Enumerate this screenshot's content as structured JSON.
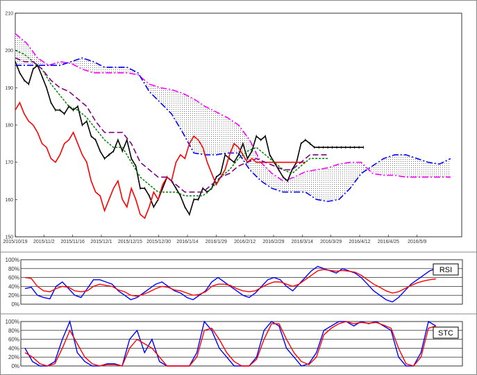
{
  "chart_data": [
    {
      "type": "line",
      "panel": "main",
      "title": "",
      "xlabel": "",
      "ylabel": "",
      "ylim": [
        150,
        210
      ],
      "y_ticks": [
        150,
        160,
        170,
        180,
        190,
        200,
        210
      ],
      "x_tick_labels": [
        "2015/10/19",
        "2015/11/2",
        "2015/11/16",
        "2015/12/1",
        "2015/12/15",
        "2015/12/30",
        "2016/1/14",
        "2016/1/29",
        "2016/2/12",
        "2016/2/29",
        "2016/3/14",
        "2016/3/29",
        "2016/4/12",
        "2016/4/25",
        "2016/5/9"
      ],
      "grid": false,
      "cloud": {
        "span_a": [
          [
            0,
            204.5
          ],
          [
            5,
            202
          ],
          [
            10,
            198
          ],
          [
            15,
            196
          ],
          [
            20,
            197
          ],
          [
            25,
            196.5
          ],
          [
            30,
            195
          ],
          [
            35,
            194
          ],
          [
            40,
            194
          ],
          [
            45,
            194
          ],
          [
            50,
            194
          ],
          [
            55,
            193.5
          ],
          [
            60,
            191
          ],
          [
            65,
            190
          ],
          [
            70,
            189.5
          ],
          [
            75,
            188.5
          ],
          [
            80,
            187
          ],
          [
            85,
            185
          ],
          [
            90,
            183.5
          ],
          [
            95,
            182
          ],
          [
            100,
            180
          ],
          [
            105,
            176
          ],
          [
            110,
            170
          ],
          [
            115,
            167
          ],
          [
            120,
            165
          ],
          [
            125,
            166
          ],
          [
            130,
            167.5
          ],
          [
            135,
            168
          ],
          [
            140,
            168.5
          ],
          [
            145,
            169.5
          ],
          [
            150,
            170
          ],
          [
            155,
            170
          ],
          [
            160,
            167
          ],
          [
            165,
            166.5
          ],
          [
            170,
            166.5
          ],
          [
            175,
            166
          ],
          [
            180,
            166
          ],
          [
            185,
            166
          ],
          [
            190,
            166
          ],
          [
            195,
            166
          ]
        ],
        "span_b": [
          [
            0,
            196
          ],
          [
            5,
            196
          ],
          [
            10,
            196
          ],
          [
            15,
            196
          ],
          [
            20,
            196
          ],
          [
            25,
            197
          ],
          [
            30,
            198
          ],
          [
            35,
            197
          ],
          [
            40,
            195.5
          ],
          [
            45,
            195.5
          ],
          [
            50,
            195.5
          ],
          [
            55,
            194
          ],
          [
            60,
            189
          ],
          [
            65,
            186
          ],
          [
            70,
            183
          ],
          [
            75,
            178
          ],
          [
            80,
            172.5
          ],
          [
            85,
            172
          ],
          [
            90,
            172
          ],
          [
            95,
            172.5
          ],
          [
            100,
            172.5
          ],
          [
            105,
            168
          ],
          [
            110,
            165
          ],
          [
            115,
            163
          ],
          [
            120,
            162
          ],
          [
            125,
            162
          ],
          [
            130,
            162
          ],
          [
            135,
            160
          ],
          [
            140,
            159.5
          ],
          [
            145,
            160
          ],
          [
            150,
            163
          ],
          [
            155,
            167
          ],
          [
            160,
            169
          ],
          [
            165,
            171
          ],
          [
            170,
            172
          ],
          [
            175,
            172
          ],
          [
            180,
            171
          ],
          [
            185,
            170
          ],
          [
            190,
            169.5
          ],
          [
            195,
            171
          ]
        ]
      },
      "series": [
        {
          "name": "",
          "role": "close",
          "color": "#000000",
          "x": [
            0,
            2,
            4,
            6,
            8,
            10,
            12,
            14,
            16,
            18,
            20,
            22,
            24,
            26,
            28,
            30,
            32,
            34,
            36,
            38,
            40,
            42,
            44,
            46,
            48,
            50,
            52,
            54,
            56,
            58,
            60,
            62,
            64,
            66,
            68,
            70,
            72,
            74,
            76,
            78,
            80,
            82,
            84,
            86,
            88,
            90,
            92,
            94,
            96,
            98,
            100,
            102,
            104,
            106,
            108,
            110,
            112,
            114,
            116,
            118,
            120,
            122,
            124,
            126,
            128,
            130,
            132,
            134,
            136,
            138,
            140,
            142,
            144,
            146,
            148,
            150,
            152,
            154,
            156
          ],
          "values": [
            197,
            194,
            192,
            191,
            195,
            196,
            193,
            190,
            186,
            184,
            184,
            183,
            185,
            184,
            185,
            180,
            181,
            177,
            176,
            173,
            171,
            172,
            173,
            176,
            173,
            176,
            171,
            169,
            163,
            163,
            161,
            158,
            160,
            163,
            166,
            165,
            163,
            161,
            158,
            156,
            160,
            160,
            163,
            162,
            163,
            166,
            167,
            172,
            171,
            170,
            172,
            175,
            171,
            173,
            177,
            176,
            177,
            172,
            170,
            168,
            166,
            165,
            168,
            170,
            175,
            176,
            175,
            174,
            174,
            174,
            174,
            174,
            174,
            174,
            174,
            174,
            174,
            174,
            174
          ]
        },
        {
          "name": "",
          "role": "lagging-span",
          "color": "#ff0000",
          "x": [
            0,
            2,
            4,
            6,
            8,
            10,
            12,
            14,
            16,
            18,
            20,
            22,
            24,
            26,
            28,
            30,
            32,
            34,
            36,
            38,
            40,
            42,
            44,
            46,
            48,
            50,
            52,
            54,
            56,
            58,
            60,
            62,
            64,
            66,
            68,
            70,
            72,
            74,
            76,
            78,
            80,
            82,
            84,
            86,
            88,
            90,
            92,
            94,
            96,
            98,
            100,
            102,
            104,
            106,
            108,
            110,
            112,
            114,
            116,
            118,
            120,
            122,
            124,
            126,
            128,
            130
          ],
          "values": [
            184,
            186,
            183,
            181,
            180,
            178,
            175,
            174,
            171,
            170,
            172,
            175,
            176,
            178,
            175,
            172,
            170,
            165,
            162,
            161,
            157,
            160,
            163,
            165,
            160,
            158,
            163,
            160,
            156,
            155,
            158,
            162,
            160,
            164,
            166,
            165,
            170,
            172,
            171,
            175,
            177,
            176,
            174,
            170,
            167,
            164,
            166,
            168,
            172,
            175,
            174,
            172,
            170,
            171,
            170,
            170,
            170,
            170,
            170,
            170,
            170,
            170,
            170,
            170,
            170,
            170
          ]
        },
        {
          "name": "",
          "role": "conversion-line",
          "color": "#008000",
          "x": [
            0,
            4,
            8,
            12,
            16,
            20,
            24,
            28,
            32,
            36,
            40,
            44,
            48,
            52,
            56,
            60,
            64,
            68,
            72,
            76,
            80,
            84,
            88,
            92,
            96,
            100,
            104,
            108,
            112,
            116,
            120,
            124,
            128,
            132,
            136,
            140
          ],
          "values": [
            200,
            199,
            197,
            195,
            191,
            188,
            185,
            184,
            182,
            179,
            176,
            174,
            174,
            170,
            166,
            164,
            162,
            162,
            162,
            161,
            161,
            161,
            163,
            166,
            168,
            171,
            173,
            174,
            172,
            170,
            168,
            167,
            169,
            171,
            171,
            171
          ]
        },
        {
          "name": "",
          "role": "base-line",
          "color": "#800080",
          "x": [
            0,
            4,
            8,
            12,
            16,
            20,
            24,
            28,
            32,
            36,
            40,
            44,
            48,
            52,
            56,
            60,
            64,
            68,
            72,
            76,
            80,
            84,
            88,
            92,
            96,
            100,
            104,
            108,
            112,
            116,
            120,
            124,
            128,
            132,
            136,
            140
          ],
          "values": [
            198,
            197,
            197,
            195,
            192,
            190,
            189,
            187,
            185,
            181,
            178,
            178,
            178,
            175,
            170,
            168,
            166,
            166,
            164,
            162,
            162,
            162,
            164,
            166,
            167,
            169,
            170,
            171,
            170,
            169,
            168,
            168,
            170,
            172,
            172,
            172
          ]
        }
      ]
    },
    {
      "type": "line",
      "panel": "RSI",
      "title": "RSI",
      "ylim": [
        0,
        100
      ],
      "y_tick_labels": [
        "0%",
        "20%",
        "40%",
        "60%",
        "80%",
        "100%"
      ],
      "series": [
        {
          "name": "",
          "color": "#0000ff",
          "values": [
            35,
            38,
            20,
            15,
            12,
            40,
            50,
            35,
            20,
            15,
            35,
            55,
            55,
            50,
            45,
            30,
            20,
            10,
            15,
            25,
            35,
            45,
            50,
            40,
            30,
            25,
            15,
            10,
            20,
            30,
            50,
            60,
            50,
            40,
            30,
            20,
            15,
            25,
            40,
            55,
            60,
            55,
            40,
            30,
            45,
            60,
            75,
            85,
            80,
            75,
            70,
            80,
            75,
            70,
            60,
            45,
            30,
            20,
            10,
            5,
            15,
            30,
            45,
            55,
            65,
            75,
            80
          ]
        },
        {
          "name": "",
          "color": "#ff0000",
          "values": [
            60,
            58,
            40,
            30,
            28,
            35,
            40,
            38,
            30,
            28,
            30,
            40,
            45,
            42,
            40,
            32,
            28,
            20,
            18,
            22,
            28,
            35,
            40,
            38,
            32,
            30,
            25,
            20,
            22,
            28,
            40,
            45,
            45,
            42,
            35,
            30,
            28,
            30,
            38,
            45,
            50,
            50,
            45,
            40,
            45,
            55,
            65,
            75,
            78,
            76,
            74,
            76,
            74,
            72,
            65,
            55,
            45,
            38,
            30,
            25,
            28,
            35,
            42,
            48,
            52,
            55,
            57
          ]
        }
      ]
    },
    {
      "type": "line",
      "panel": "STC",
      "title": "STC",
      "ylim": [
        0,
        100
      ],
      "y_tick_labels": [
        "0%",
        "20%",
        "40%",
        "60%",
        "80%",
        "100%"
      ],
      "series": [
        {
          "name": "",
          "color": "#0000ff",
          "values": [
            40,
            10,
            0,
            0,
            10,
            60,
            100,
            30,
            10,
            0,
            0,
            5,
            5,
            0,
            60,
            80,
            30,
            60,
            10,
            0,
            0,
            0,
            0,
            30,
            100,
            80,
            40,
            20,
            0,
            0,
            0,
            20,
            80,
            100,
            90,
            40,
            20,
            0,
            5,
            30,
            80,
            90,
            100,
            100,
            90,
            100,
            95,
            100,
            90,
            80,
            20,
            0,
            0,
            30,
            100,
            90
          ]
        },
        {
          "name": "",
          "color": "#ff0000",
          "values": [
            30,
            20,
            5,
            0,
            5,
            40,
            80,
            50,
            20,
            5,
            0,
            3,
            3,
            0,
            40,
            60,
            50,
            40,
            20,
            0,
            0,
            0,
            0,
            20,
            80,
            85,
            60,
            30,
            10,
            0,
            0,
            15,
            60,
            95,
            95,
            60,
            30,
            10,
            3,
            20,
            70,
            85,
            95,
            100,
            95,
            98,
            96,
            98,
            92,
            85,
            40,
            5,
            0,
            20,
            85,
            90
          ]
        }
      ]
    }
  ]
}
